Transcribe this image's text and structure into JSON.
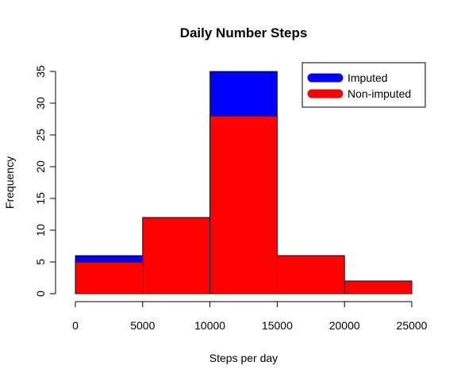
{
  "chart_data": {
    "type": "bar",
    "title": "Daily Number Steps",
    "xlabel": "Steps per day",
    "ylabel": "Frequency",
    "bins": [
      [
        0,
        5000
      ],
      [
        5000,
        10000
      ],
      [
        10000,
        15000
      ],
      [
        15000,
        20000
      ],
      [
        20000,
        25000
      ]
    ],
    "series": [
      {
        "name": "Imputed",
        "color": "#0000ff",
        "values": [
          6,
          12,
          35,
          6,
          2
        ]
      },
      {
        "name": "Non-imputed",
        "color": "#ff0000",
        "values": [
          5,
          12,
          28,
          6,
          2
        ]
      }
    ],
    "xlim": [
      0,
      25000
    ],
    "ylim": [
      0,
      35
    ],
    "xticks": [
      "0",
      "5000",
      "10000",
      "15000",
      "20000",
      "25000"
    ],
    "yticks": [
      "0",
      "5",
      "10",
      "15",
      "20",
      "25",
      "30",
      "35"
    ],
    "grid": false,
    "legend_position": "top-right"
  }
}
